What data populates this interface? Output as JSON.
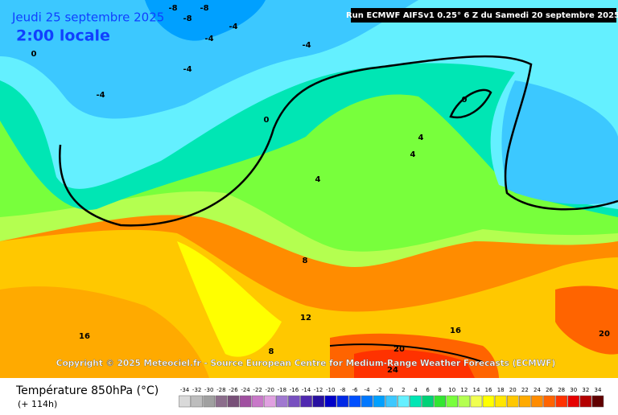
{
  "header": {
    "date": "Jeudi 25 septembre 2025",
    "time": "2:00 locale",
    "run": "Run ECMWF AIFSv1 0.25° 6 Z du Samedi 20 septembre 2025"
  },
  "copyright": "Copyright © 2025 Meteociel.fr - Source European Centre for Medium-Range Weather Forecasts (ECMWF)",
  "footer": {
    "title": "Température 850hPa (°C)",
    "lead": "(+ 114h)"
  },
  "scale": {
    "labels": [
      -34,
      -32,
      -30,
      -28,
      -26,
      -24,
      -22,
      -20,
      -18,
      -16,
      -14,
      -12,
      -10,
      -8,
      -6,
      -4,
      -2,
      0,
      2,
      4,
      6,
      8,
      10,
      12,
      14,
      16,
      18,
      20,
      22,
      24,
      26,
      28,
      30,
      32,
      34
    ],
    "colors": [
      "#d9d9d9",
      "#bdbdbd",
      "#a0a0a0",
      "#8c6e8c",
      "#785078",
      "#a050a0",
      "#c878c8",
      "#e0a0e0",
      "#a078d0",
      "#7850c0",
      "#5028b0",
      "#2810a0",
      "#0000c8",
      "#0028e6",
      "#0050ff",
      "#0078ff",
      "#00a0ff",
      "#3cc8ff",
      "#64f0ff",
      "#00e6b4",
      "#00d278",
      "#32e632",
      "#78ff3c",
      "#b4ff50",
      "#f0ff50",
      "#ffff00",
      "#ffe600",
      "#ffc800",
      "#ffaa00",
      "#ff8c00",
      "#ff6400",
      "#ff3200",
      "#e60000",
      "#b40000",
      "#600000"
    ]
  },
  "contour_labels": [
    -8,
    -8,
    -8,
    -4,
    -4,
    -4,
    -4,
    -4,
    0,
    0,
    0,
    4,
    4,
    4,
    8,
    8,
    12,
    16,
    16,
    20,
    20,
    24
  ]
}
